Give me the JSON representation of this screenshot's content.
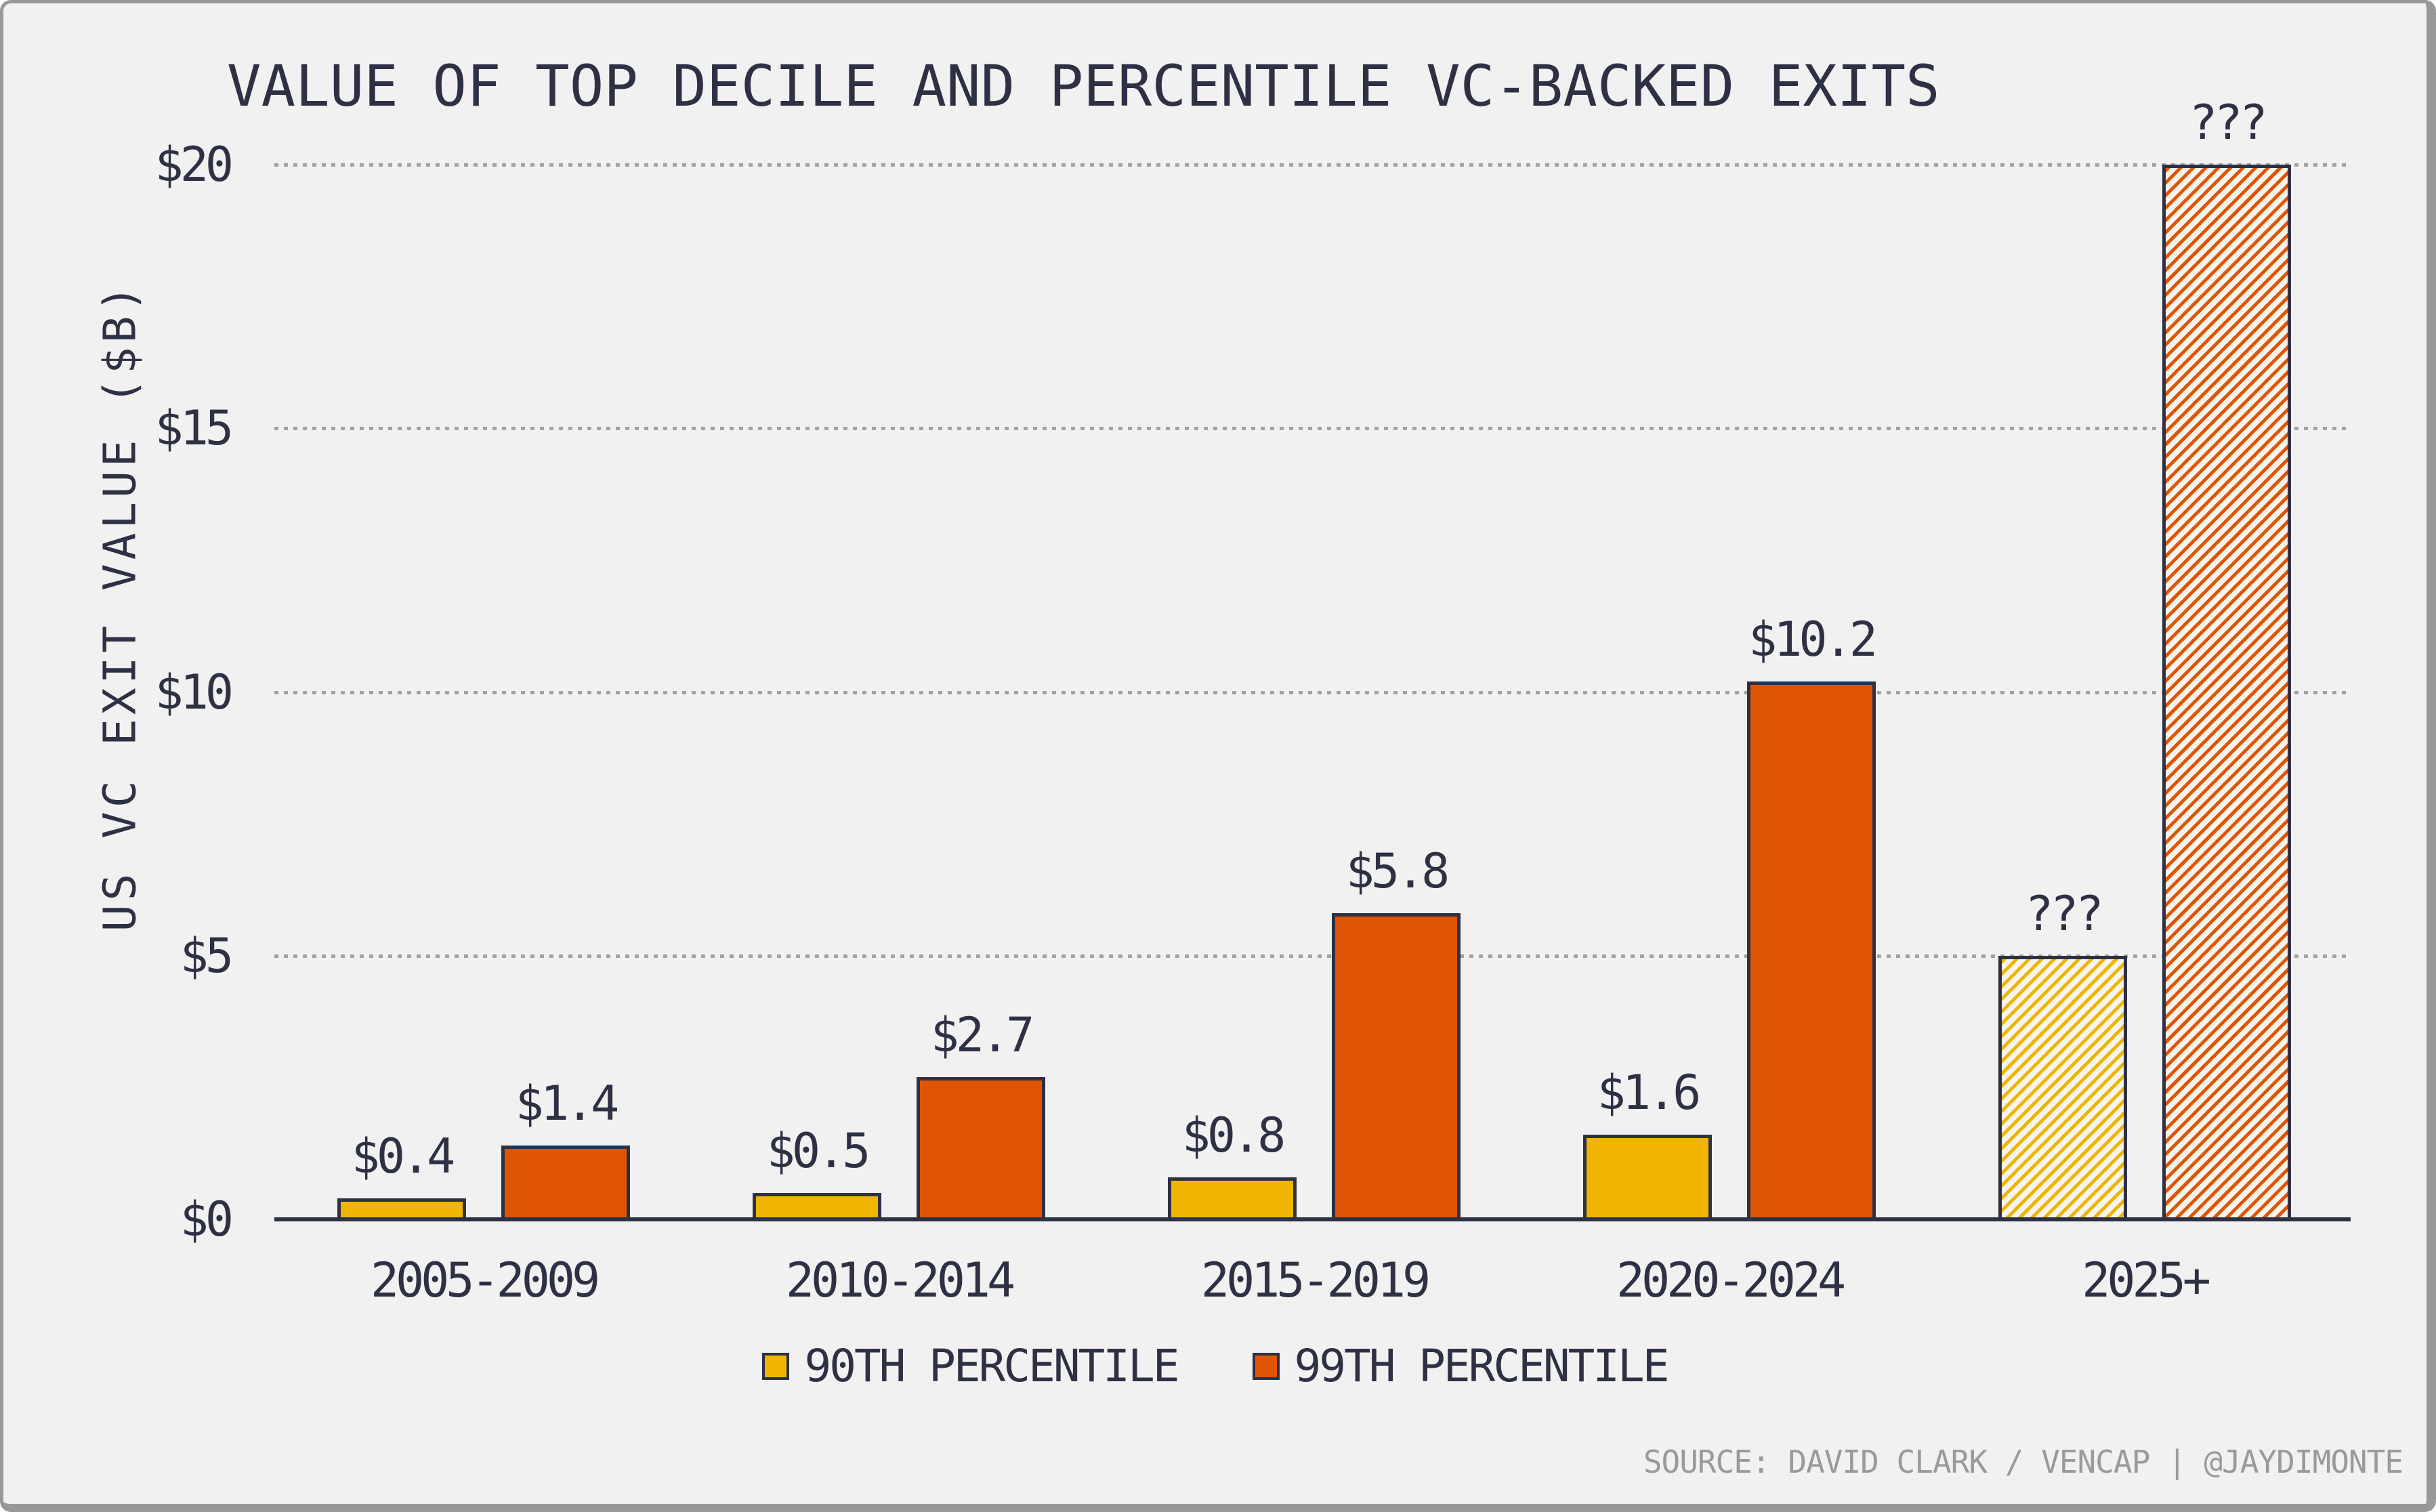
{
  "chart_data": {
    "type": "bar",
    "title": "VALUE OF TOP DECILE AND PERCENTILE VC-BACKED EXITS",
    "ylabel": "US VC EXIT VALUE ($B)",
    "xlabel": "",
    "ylim": [
      0,
      20
    ],
    "grid": "horizontal-dotted",
    "legend_position": "bottom",
    "y_ticks": [
      {
        "label": "$0",
        "value": 0
      },
      {
        "label": "$5",
        "value": 5
      },
      {
        "label": "$10",
        "value": 10
      },
      {
        "label": "$15",
        "value": 15
      },
      {
        "label": "$20",
        "value": 20
      }
    ],
    "categories": [
      "2005-2009",
      "2010-2014",
      "2015-2019",
      "2020-2024",
      "2025+"
    ],
    "series": [
      {
        "name": "90TH PERCENTILE",
        "color": "#f0b402",
        "values": [
          0.4,
          0.5,
          0.8,
          1.6,
          5.0
        ],
        "bar_labels": [
          "$0.4",
          "$0.5",
          "$0.8",
          "$1.6",
          "???"
        ],
        "hatched": [
          false,
          false,
          false,
          false,
          true
        ]
      },
      {
        "name": "99TH PERCENTILE",
        "color": "#e05504",
        "values": [
          1.4,
          2.7,
          5.8,
          10.2,
          20.0
        ],
        "bar_labels": [
          "$1.4",
          "$2.7",
          "$5.8",
          "$10.2",
          "???"
        ],
        "hatched": [
          false,
          false,
          false,
          false,
          true
        ]
      }
    ],
    "source": "SOURCE: DAVID CLARK / VENCAP | @JAYDIMONTE"
  },
  "colors": {
    "background": "#f1f1f1",
    "frame_border": "#989898",
    "text": "#2e3044",
    "gridline": "#a2a2a2",
    "source_text": "#9a9a9a"
  }
}
